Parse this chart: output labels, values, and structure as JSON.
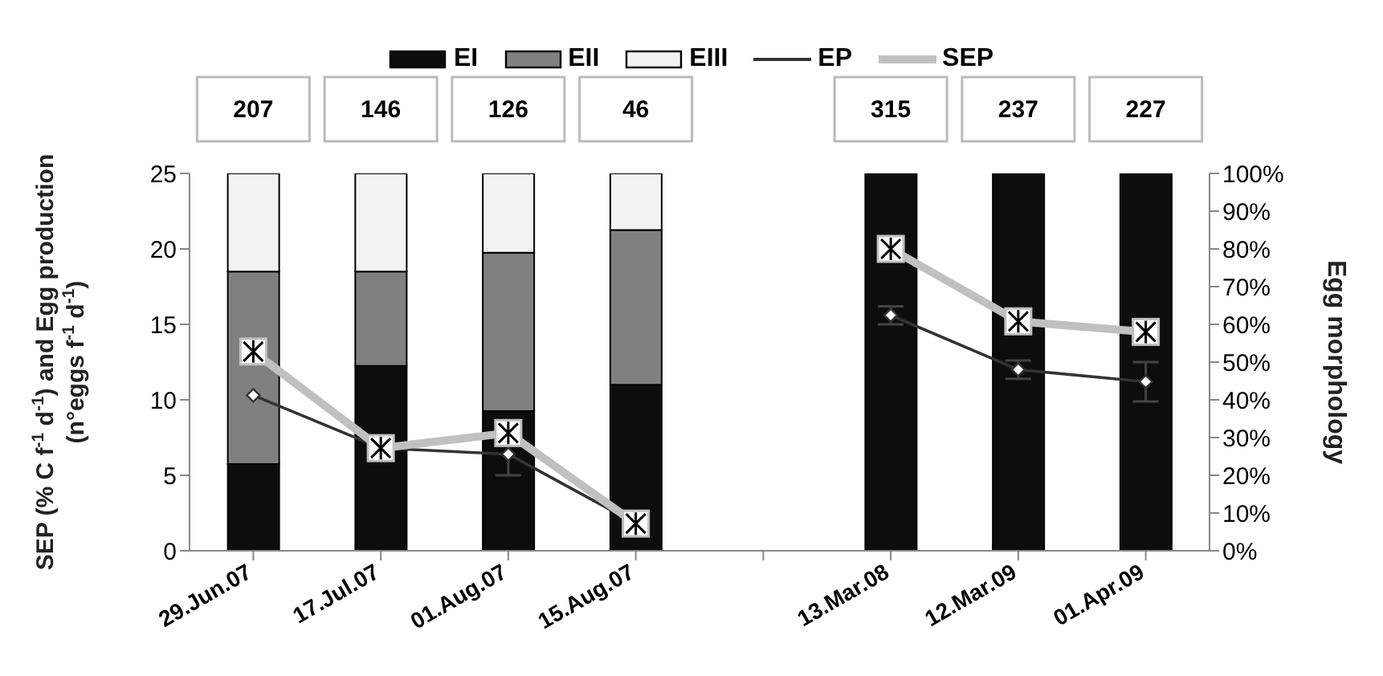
{
  "chart_data": {
    "type": "bar",
    "stacked": true,
    "categories": [
      "29.Jun.07",
      "17.Jul.07",
      "01.Aug.07",
      "15.Aug.07",
      null,
      "13.Mar.08",
      "12.Mar.09",
      "01.Apr.09"
    ],
    "series": [
      {
        "name": "EI",
        "axis": "y2",
        "color": "#0d0d0d",
        "values": [
          23,
          49,
          37,
          44,
          null,
          100,
          100,
          100
        ]
      },
      {
        "name": "EII",
        "axis": "y2",
        "color": "#808080",
        "values": [
          51,
          25,
          42,
          41,
          null,
          0,
          0,
          0
        ]
      },
      {
        "name": "EIII",
        "axis": "y2",
        "color": "#f2f2f2",
        "values": [
          26,
          26,
          21,
          15,
          null,
          0,
          0,
          0
        ]
      },
      {
        "name": "EP",
        "type": "line",
        "color": "#333333",
        "marker": "diamond",
        "values": [
          10.3,
          6.8,
          6.4,
          1.8,
          null,
          15.6,
          12,
          11.2
        ],
        "errors": [
          null,
          null,
          1.4,
          null,
          null,
          0.6,
          0.6,
          1.3
        ]
      },
      {
        "name": "SEP",
        "type": "line",
        "color": "#c0c0c0",
        "marker": "square",
        "values": [
          13.2,
          6.8,
          7.8,
          1.8,
          null,
          20,
          15.2,
          14.5
        ]
      }
    ],
    "ylim": [
      0,
      25
    ],
    "yticks": [
      0,
      5,
      10,
      15,
      20,
      25
    ],
    "y2lim": [
      0,
      100
    ],
    "y2ticks": [
      {
        "value": 0,
        "label": "0%"
      },
      {
        "value": 10,
        "label": "10%"
      },
      {
        "value": 20,
        "label": "20%"
      },
      {
        "value": 30,
        "label": "30%"
      },
      {
        "value": 40,
        "label": "40%"
      },
      {
        "value": 50,
        "label": "50%"
      },
      {
        "value": 60,
        "label": "60%"
      },
      {
        "value": 70,
        "label": "70%"
      },
      {
        "value": 80,
        "label": "80%"
      },
      {
        "value": 90,
        "label": "90%"
      },
      {
        "value": 100,
        "label": "100%"
      }
    ],
    "ylabel": "SEP (% C f$^{-1}$ d$^{-1}$) and Egg production\n(n°eggs f$^{-1}$ d$^{-1}$)",
    "y2label": "Egg morphology",
    "annotations": [
      "207",
      "146",
      "126",
      "46",
      null,
      "315",
      "237",
      "227"
    ],
    "legend": "top",
    "grid": false
  }
}
